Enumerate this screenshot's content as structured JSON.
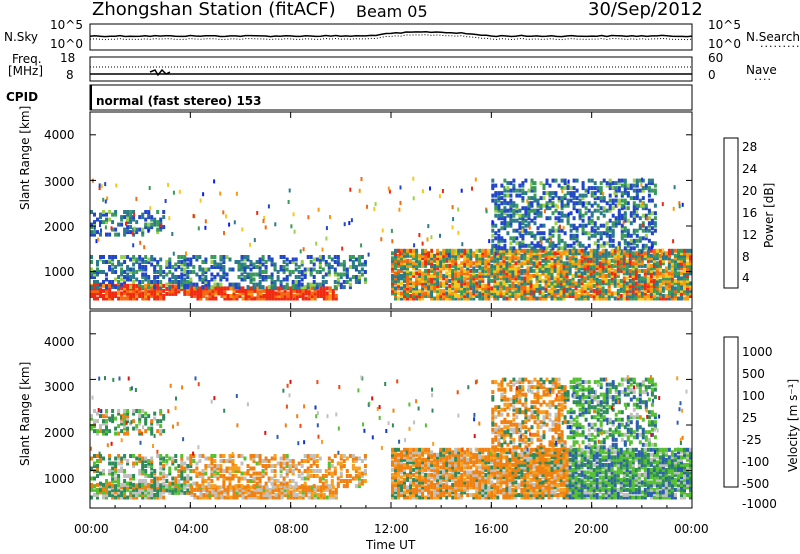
{
  "header": {
    "station": "Zhongshan Station (fitACF)",
    "beam": "Beam 05",
    "date": "30/Sep/2012"
  },
  "noise_panel": {
    "left_label": "N.Sky",
    "left_ticks": [
      "10^5",
      "10^0"
    ],
    "right_label": "N.Search",
    "right_ticks": [
      "10^5",
      "10^0"
    ]
  },
  "freq_panel": {
    "left_label_1": "Freq.",
    "left_label_2": "[MHz]",
    "left_ticks": [
      "18",
      "8"
    ],
    "right_label": "Nave",
    "right_ticks": [
      "60",
      "0"
    ]
  },
  "cpid": {
    "label": "CPID",
    "text": "normal (fast stereo) 153"
  },
  "x_axis": {
    "label": "Time UT",
    "ticks": [
      "00:00",
      "04:00",
      "08:00",
      "12:00",
      "16:00",
      "20:00",
      "00:00"
    ]
  },
  "power_panel": {
    "ylabel": "Slant Range [km]",
    "yticks": [
      "4000",
      "3000",
      "2000",
      "1000"
    ],
    "colorbar_label": "Power [dB]",
    "colorbar_ticks": [
      "28",
      "24",
      "20",
      "16",
      "12",
      "8",
      "4"
    ],
    "colors": [
      "#0a1ff5",
      "#2246c8",
      "#2b7a8c",
      "#3a9a5a",
      "#9bd14a",
      "#f6c81a",
      "#f79a10",
      "#f46a10",
      "#f02a10"
    ]
  },
  "velocity_panel": {
    "ylabel": "Slant Range [km]",
    "yticks": [
      "4000",
      "3000",
      "2000",
      "1000"
    ],
    "colorbar_label": "Velocity [m s⁻¹]",
    "colorbar_ticks": [
      "1000",
      "500",
      "100",
      "25",
      "-25",
      "-100",
      "-500",
      "-1000"
    ],
    "colors": [
      "#1436c8",
      "#2d5fb0",
      "#2f8a5a",
      "#55c030",
      "#c0c0c0",
      "#f7a020",
      "#f08010",
      "#f04a10",
      "#e01010"
    ]
  },
  "chart_data": {
    "type": "heatmap",
    "x_range_hours": [
      0,
      24
    ],
    "y_range_km": [
      180,
      4500
    ],
    "power_bands": [
      {
        "t0": 0.0,
        "t1": 3.0,
        "r0": 400,
        "r1": 700,
        "level": "strong"
      },
      {
        "t0": 3.0,
        "t1": 4.0,
        "r0": 500,
        "r1": 700,
        "level": "strong"
      },
      {
        "t0": 4.0,
        "t1": 9.8,
        "r0": 400,
        "r1": 650,
        "level": "strong"
      },
      {
        "t0": 0.0,
        "t1": 11.0,
        "r0": 650,
        "r1": 1350,
        "level": "weak"
      },
      {
        "t0": 0.0,
        "t1": 3.0,
        "r0": 1800,
        "r1": 2300,
        "level": "weak"
      },
      {
        "t0": 12.0,
        "t1": 24.0,
        "r0": 400,
        "r1": 1500,
        "level": "mixed"
      },
      {
        "t0": 16.0,
        "t1": 22.5,
        "r0": 1500,
        "r1": 3000,
        "level": "weak"
      }
    ]
  }
}
